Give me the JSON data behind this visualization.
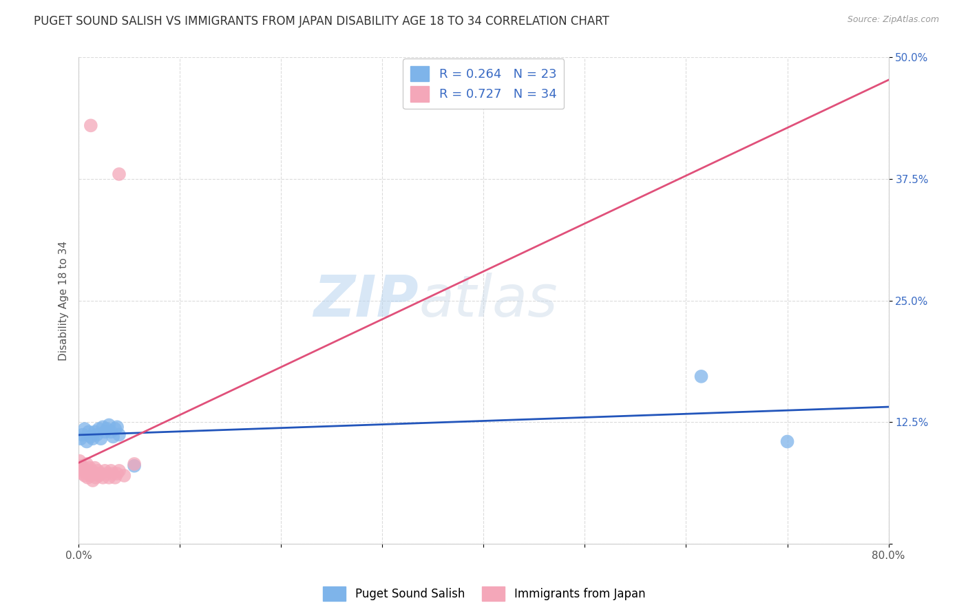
{
  "title": "PUGET SOUND SALISH VS IMMIGRANTS FROM JAPAN DISABILITY AGE 18 TO 34 CORRELATION CHART",
  "source": "Source: ZipAtlas.com",
  "ylabel": "Disability Age 18 to 34",
  "xlim": [
    0.0,
    0.8
  ],
  "ylim": [
    0.0,
    0.5
  ],
  "xticks": [
    0.0,
    0.1,
    0.2,
    0.3,
    0.4,
    0.5,
    0.6,
    0.7,
    0.8
  ],
  "yticks": [
    0.0,
    0.125,
    0.25,
    0.375,
    0.5
  ],
  "watermark_zip": "ZIP",
  "watermark_atlas": "atlas",
  "series": [
    {
      "name": "Puget Sound Salish",
      "R": 0.264,
      "N": 23,
      "color": "#7eb4ea",
      "line_color": "#2255bb",
      "x": [
        0.002,
        0.004,
        0.006,
        0.008,
        0.01,
        0.012,
        0.014,
        0.016,
        0.018,
        0.02,
        0.022,
        0.024,
        0.026,
        0.028,
        0.03,
        0.032,
        0.034,
        0.036,
        0.038,
        0.04,
        0.055,
        0.615,
        0.7
      ],
      "y": [
        0.108,
        0.112,
        0.118,
        0.105,
        0.115,
        0.11,
        0.108,
        0.115,
        0.112,
        0.118,
        0.108,
        0.12,
        0.115,
        0.118,
        0.122,
        0.115,
        0.11,
        0.118,
        0.12,
        0.112,
        0.08,
        0.172,
        0.105
      ]
    },
    {
      "name": "Immigrants from Japan",
      "R": 0.727,
      "N": 34,
      "color": "#f4a7b9",
      "line_color": "#e0507a",
      "x": [
        0.001,
        0.002,
        0.003,
        0.004,
        0.005,
        0.006,
        0.007,
        0.008,
        0.009,
        0.01,
        0.011,
        0.012,
        0.013,
        0.014,
        0.015,
        0.016,
        0.017,
        0.018,
        0.019,
        0.02,
        0.022,
        0.024,
        0.026,
        0.028,
        0.03,
        0.032,
        0.034,
        0.036,
        0.038,
        0.04,
        0.045,
        0.055,
        0.012,
        0.04
      ],
      "y": [
        0.085,
        0.075,
        0.08,
        0.072,
        0.078,
        0.07,
        0.075,
        0.082,
        0.068,
        0.072,
        0.078,
        0.07,
        0.075,
        0.065,
        0.072,
        0.078,
        0.068,
        0.072,
        0.075,
        0.07,
        0.072,
        0.068,
        0.075,
        0.072,
        0.068,
        0.075,
        0.072,
        0.068,
        0.072,
        0.075,
        0.07,
        0.082,
        0.43,
        0.38
      ]
    }
  ],
  "legend_text_color": "#3a6bc4",
  "title_fontsize": 12,
  "axis_label_fontsize": 11,
  "tick_fontsize": 11,
  "background_color": "#ffffff",
  "grid_color": "#cccccc"
}
